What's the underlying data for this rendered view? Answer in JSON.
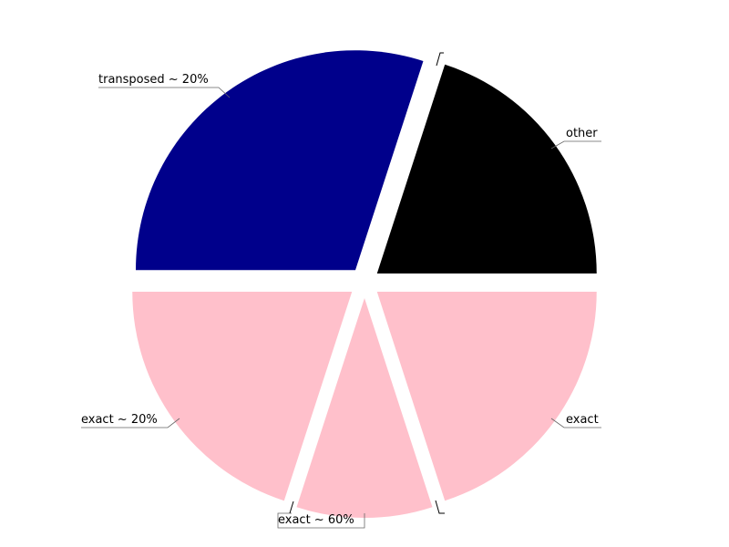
{
  "chart_data": {
    "type": "pie",
    "title": "",
    "exploded": true,
    "start_angle_deg": 0,
    "direction": "counterclockwise",
    "slices": [
      {
        "label": "other",
        "value": 20,
        "color": "#000000"
      },
      {
        "label": "transposed ~ 20%",
        "value": 30,
        "color": "#00008b"
      },
      {
        "label": "exact ~ 20%",
        "value": 20,
        "color": "#ffc0cb"
      },
      {
        "label": "exact ~ 60%",
        "value": 10,
        "color": "#ffc0cb"
      },
      {
        "label": "exact",
        "value": 20,
        "color": "#ffc0cb"
      }
    ]
  }
}
